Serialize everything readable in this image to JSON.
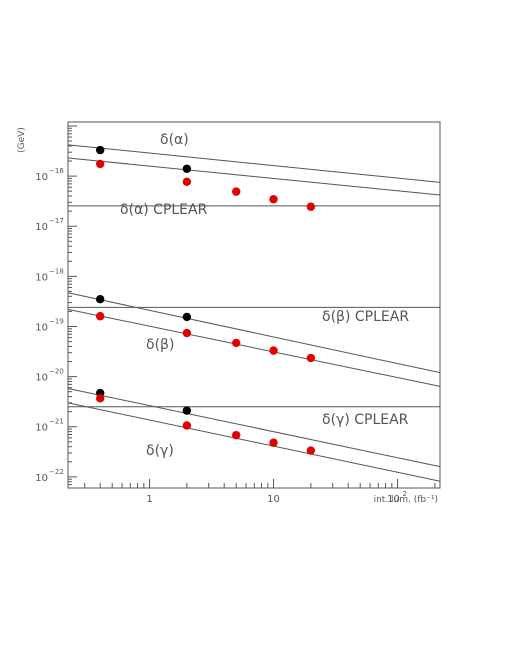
{
  "chart_data": {
    "type": "scatter",
    "xscale": "log",
    "yscale": "log",
    "xlim": [
      0.22,
      220
    ],
    "ylim": [
      6e-23,
      1.2e-15
    ],
    "xlabel": "int. lum. (fb⁻¹)",
    "ylabel": "(GeV)",
    "x_ticks": [
      {
        "value": 1,
        "base": "1",
        "exp": ""
      },
      {
        "value": 10,
        "base": "10",
        "exp": ""
      },
      {
        "value": 100,
        "base": "10",
        "exp": "2"
      }
    ],
    "y_ticks": [
      {
        "value": 1e-16,
        "base": "10",
        "exp": "−16"
      },
      {
        "value": 1e-17,
        "base": "10",
        "exp": "−17"
      },
      {
        "value": 1e-18,
        "base": "10",
        "exp": "−18"
      },
      {
        "value": 1e-19,
        "base": "10",
        "exp": "−19"
      },
      {
        "value": 1e-20,
        "base": "10",
        "exp": "−20"
      },
      {
        "value": 1e-21,
        "base": "10",
        "exp": "−21"
      },
      {
        "value": 1e-22,
        "base": "10",
        "exp": "−22"
      }
    ],
    "groups": [
      {
        "key": "alpha",
        "black_points": [
          {
            "x": 0.4,
            "y": 3.3e-16
          },
          {
            "x": 2,
            "y": 1.4e-16
          }
        ],
        "red_points": [
          {
            "x": 0.4,
            "y": 1.75e-16
          },
          {
            "x": 2,
            "y": 7.7e-17
          },
          {
            "x": 5,
            "y": 4.9e-17
          },
          {
            "x": 10,
            "y": 3.45e-17
          },
          {
            "x": 20,
            "y": 2.45e-17
          }
        ],
        "upper_line_y": [
          4.2e-16,
          7.5e-17
        ],
        "lower_line_y": [
          2.3e-16,
          4.2e-17
        ],
        "cplear_y": 2.55e-17,
        "cplear_label": "δ(α) CPLEAR",
        "label": "δ(α)"
      },
      {
        "key": "beta",
        "black_points": [
          {
            "x": 0.4,
            "y": 3.5e-19
          },
          {
            "x": 2,
            "y": 1.55e-19
          }
        ],
        "red_points": [
          {
            "x": 0.4,
            "y": 1.6e-19
          },
          {
            "x": 2,
            "y": 7.4e-20
          },
          {
            "x": 5,
            "y": 4.7e-20
          },
          {
            "x": 10,
            "y": 3.3e-20
          },
          {
            "x": 20,
            "y": 2.35e-20
          }
        ],
        "upper_line_y": [
          4.7e-19,
          1.2e-20
        ],
        "lower_line_y": [
          2.2e-19,
          6.4e-21
        ],
        "cplear_y": 2.4e-19,
        "cplear_label": "δ(β) CPLEAR",
        "label": "δ(β)"
      },
      {
        "key": "gamma",
        "black_points": [
          {
            "x": 0.4,
            "y": 4.7e-21
          },
          {
            "x": 2,
            "y": 2.1e-21
          }
        ],
        "red_points": [
          {
            "x": 0.4,
            "y": 3.7e-21
          },
          {
            "x": 2,
            "y": 1.06e-21
          },
          {
            "x": 5,
            "y": 6.8e-22
          },
          {
            "x": 10,
            "y": 4.8e-22
          },
          {
            "x": 20,
            "y": 3.35e-22
          }
        ],
        "upper_line_y": [
          5.8e-21,
          1.6e-22
        ],
        "lower_line_y": [
          3e-21,
          8.2e-23
        ],
        "cplear_y": 2.5e-21,
        "cplear_label": "δ(γ) CPLEAR",
        "label": "δ(γ)"
      }
    ],
    "colors": {
      "black_points": "#000000",
      "red_points": "#e00000",
      "lines": "#555555",
      "text": "#555555"
    }
  }
}
